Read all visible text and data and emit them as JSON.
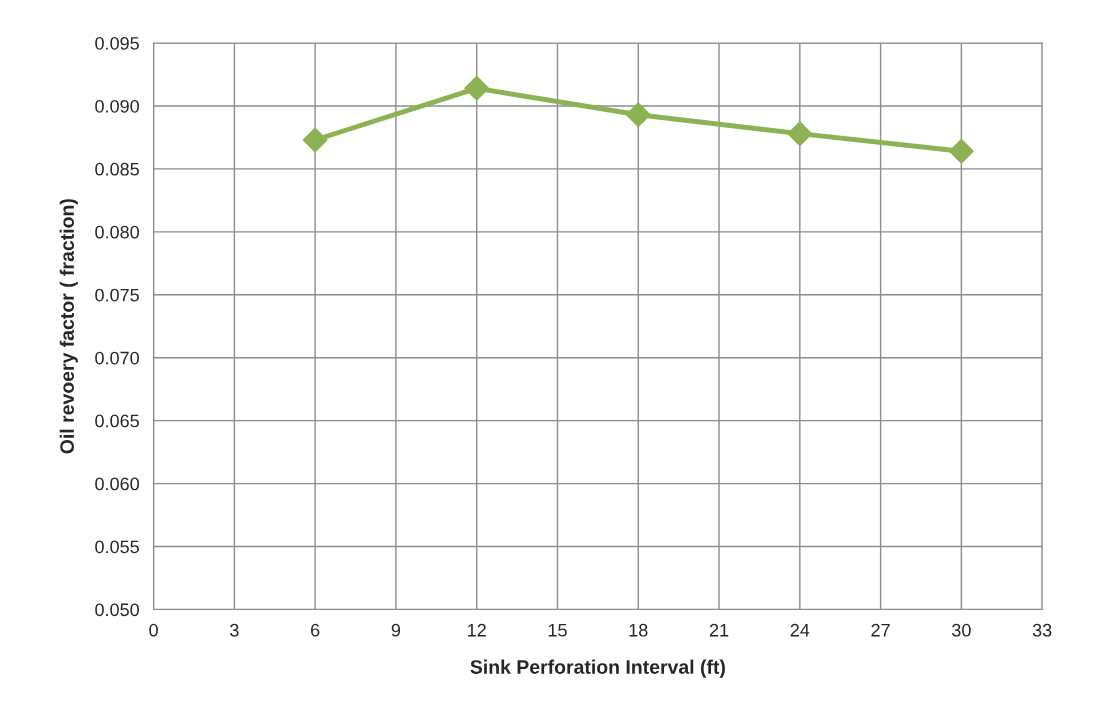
{
  "chart_data": {
    "type": "line",
    "xlabel": "Sink Perforation Interval (ft)",
    "ylabel": "Oil revoery factor ( fraction)",
    "x": [
      6,
      12,
      18,
      24,
      30
    ],
    "series": [
      {
        "color": "#8db254",
        "values": [
          0.0873,
          0.0914,
          0.0893,
          0.0878,
          0.0864
        ]
      }
    ],
    "marker": "diamond",
    "line_style": "solid",
    "grid": true,
    "legend": false,
    "xlim": [
      0,
      33
    ],
    "xticks": [
      0,
      3,
      6,
      9,
      12,
      15,
      18,
      21,
      24,
      27,
      30,
      33
    ],
    "ylim": [
      0.05,
      0.095
    ],
    "yticks": [
      {
        "value": 0.05,
        "label": "0.050"
      },
      {
        "value": 0.055,
        "label": "0.055"
      },
      {
        "value": 0.06,
        "label": "0.060"
      },
      {
        "value": 0.065,
        "label": "0.065"
      },
      {
        "value": 0.07,
        "label": "0.070"
      },
      {
        "value": 0.075,
        "label": "0.075"
      },
      {
        "value": 0.08,
        "label": "0.080"
      },
      {
        "value": 0.085,
        "label": "0.085"
      },
      {
        "value": 0.09,
        "label": "0.090"
      },
      {
        "value": 0.095,
        "label": "0.095"
      }
    ]
  }
}
